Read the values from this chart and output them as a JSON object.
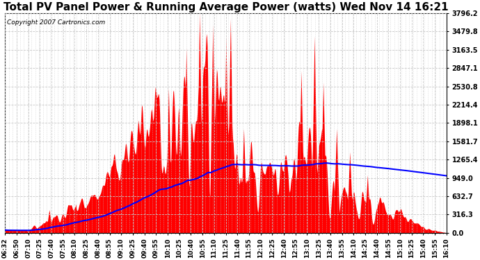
{
  "title": "Total PV Panel Power & Running Average Power (watts) Wed Nov 14 16:21",
  "copyright": "Copyright 2007 Cartronics.com",
  "y_max": 3796.2,
  "y_min": 0.0,
  "y_ticks": [
    0.0,
    316.3,
    632.7,
    949.0,
    1265.4,
    1581.7,
    1898.1,
    2214.4,
    2530.8,
    2847.1,
    3163.5,
    3479.8,
    3796.2
  ],
  "fill_color": "#FF0000",
  "line_color": "#0000FF",
  "background_color": "#FFFFFF",
  "grid_color": "#C8C8C8",
  "title_fontsize": 11,
  "copyright_fontsize": 6.5,
  "x_tick_labels": [
    "06:32",
    "06:50",
    "07:10",
    "07:25",
    "07:40",
    "07:55",
    "08:10",
    "08:25",
    "08:40",
    "08:55",
    "09:10",
    "09:25",
    "09:40",
    "09:55",
    "10:10",
    "10:25",
    "10:40",
    "10:55",
    "11:10",
    "11:25",
    "11:40",
    "11:55",
    "12:10",
    "12:25",
    "12:40",
    "12:55",
    "13:10",
    "13:25",
    "13:40",
    "13:55",
    "14:10",
    "14:25",
    "14:40",
    "14:55",
    "15:10",
    "15:25",
    "15:40",
    "15:55",
    "16:10"
  ]
}
